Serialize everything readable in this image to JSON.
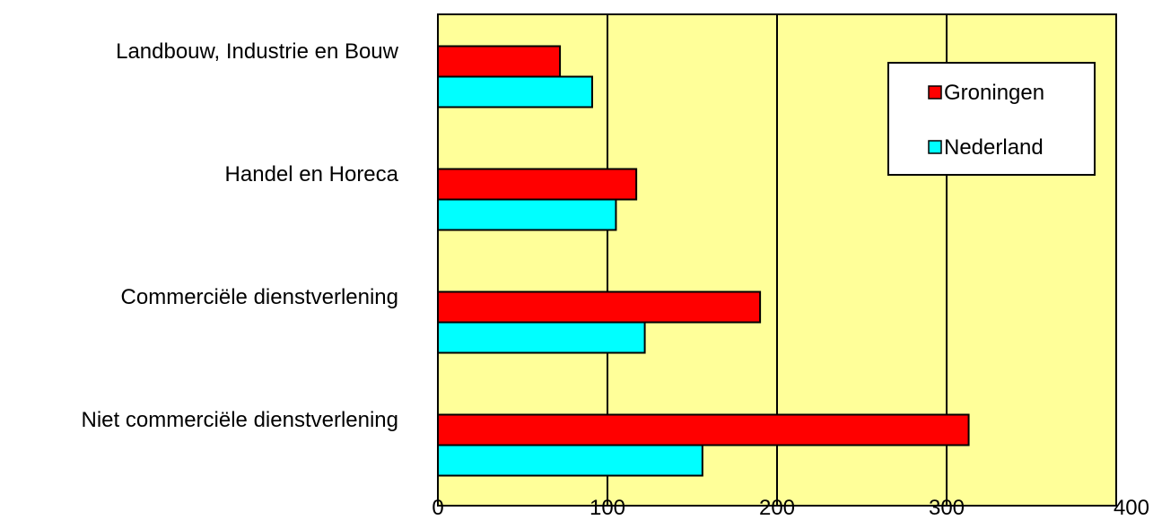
{
  "chart_data": {
    "type": "bar",
    "orientation": "horizontal",
    "categories": [
      "Landbouw, Industrie en Bouw",
      "Handel en Horeca",
      "Commerciële dienstverlening",
      "Niet commerciële dienstverlening"
    ],
    "series": [
      {
        "name": "Groningen",
        "color": "#ff0000",
        "values": [
          72,
          117,
          190,
          313
        ]
      },
      {
        "name": "Nederland",
        "color": "#00ffff",
        "values": [
          91,
          105,
          122,
          156
        ]
      }
    ],
    "title": "",
    "xlabel": "",
    "ylabel": "",
    "xlim": [
      0,
      400
    ],
    "xticks": [
      0,
      100,
      200,
      300,
      400
    ],
    "xtick_labels": [
      "0",
      "100",
      "200",
      "300",
      "400"
    ],
    "grid": "vertical",
    "plot_background": "#ffff99",
    "legend_position": "top-right"
  }
}
